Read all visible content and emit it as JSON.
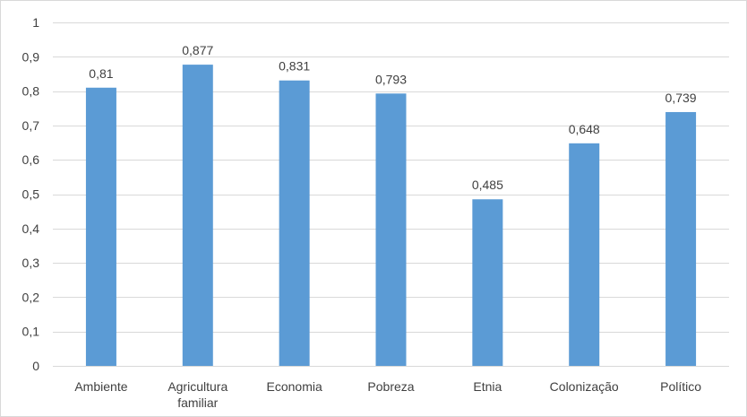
{
  "chart_data": {
    "type": "bar",
    "categories": [
      [
        "Ambiente"
      ],
      [
        "Agricultura",
        "familiar"
      ],
      [
        "Economia"
      ],
      [
        "Pobreza"
      ],
      [
        "Etnia"
      ],
      [
        "Colonização"
      ],
      [
        "Político"
      ]
    ],
    "values": [
      0.81,
      0.877,
      0.831,
      0.793,
      0.485,
      0.648,
      0.739
    ],
    "value_labels": [
      "0,81",
      "0,877",
      "0,831",
      "0,793",
      "0,485",
      "0,648",
      "0,739"
    ],
    "ylim": [
      0,
      1
    ],
    "yticks": [
      0,
      0.1,
      0.2,
      0.3,
      0.4,
      0.5,
      0.6,
      0.7,
      0.8,
      0.9,
      1
    ],
    "ytick_labels": [
      "0",
      "0,1",
      "0,2",
      "0,3",
      "0,4",
      "0,5",
      "0,6",
      "0,7",
      "0,8",
      "0,9",
      "1"
    ],
    "grid": true,
    "legend": false,
    "bar_color": "#5b9bd5",
    "grid_color": "#d9d9d9",
    "text_color": "#404040",
    "title": "",
    "xlabel": "",
    "ylabel": ""
  }
}
